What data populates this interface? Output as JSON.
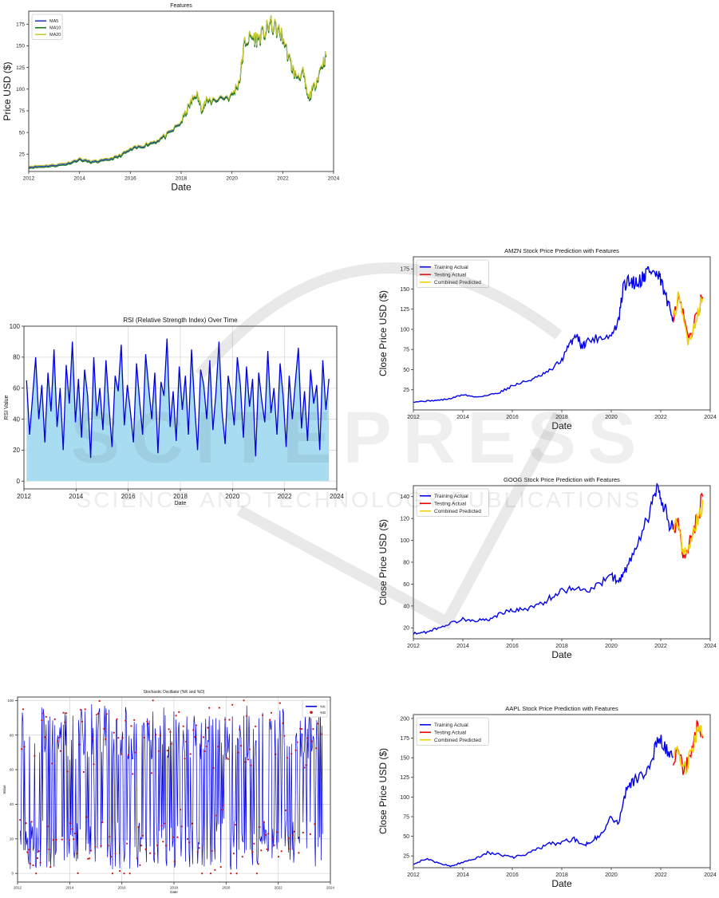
{
  "watermark": {
    "line1": "SCITEPRESS",
    "line2": "SCIENCE AND TECHNOLOGY PUBLICATIONS"
  },
  "chart_data": [
    {
      "id": "features",
      "type": "line",
      "title": "Features",
      "xlabel": "Date",
      "ylabel": "Price USD ($)",
      "xlim": [
        2012,
        2024
      ],
      "ylim": [
        5,
        190
      ],
      "xticks": [
        2012,
        2014,
        2016,
        2018,
        2020,
        2022,
        2024
      ],
      "yticks": [
        25,
        50,
        75,
        100,
        125,
        150,
        175
      ],
      "legend_position": "top-left",
      "x": [
        2012.0,
        2012.5,
        2013.0,
        2013.5,
        2014.0,
        2014.5,
        2015.0,
        2015.5,
        2016.0,
        2016.5,
        2017.0,
        2017.5,
        2018.0,
        2018.3,
        2018.6,
        2018.8,
        2019.0,
        2019.5,
        2020.0,
        2020.3,
        2020.5,
        2020.8,
        2021.0,
        2021.3,
        2021.5,
        2021.8,
        2022.0,
        2022.3,
        2022.5,
        2022.8,
        2023.0,
        2023.2,
        2023.5,
        2023.7
      ],
      "series": [
        {
          "name": "MA5",
          "color": "#1f3fbf",
          "values": [
            10,
            11,
            12,
            14,
            19,
            16,
            18,
            22,
            30,
            35,
            40,
            48,
            62,
            80,
            95,
            78,
            85,
            90,
            92,
            110,
            155,
            160,
            158,
            165,
            175,
            168,
            160,
            130,
            115,
            118,
            88,
            100,
            125,
            138
          ]
        },
        {
          "name": "MA10",
          "color": "#1e7a1e",
          "values": [
            10,
            11,
            12,
            14,
            19,
            16,
            18,
            22,
            30,
            35,
            40,
            48,
            62,
            80,
            95,
            78,
            85,
            90,
            92,
            110,
            155,
            160,
            158,
            165,
            175,
            168,
            160,
            130,
            115,
            118,
            88,
            100,
            125,
            138
          ]
        },
        {
          "name": "MA20",
          "color": "#c8c832",
          "values": [
            10,
            11,
            12,
            14,
            19,
            16,
            18,
            22,
            30,
            35,
            40,
            48,
            62,
            80,
            95,
            78,
            85,
            90,
            92,
            110,
            155,
            160,
            158,
            165,
            175,
            168,
            160,
            130,
            115,
            118,
            88,
            100,
            125,
            138
          ]
        }
      ]
    },
    {
      "id": "rsi",
      "type": "line",
      "title": "RSI (Relative Strength Index) Over Time",
      "xlabel": "Date",
      "ylabel": "RSI Value",
      "xlim": [
        2012,
        2024
      ],
      "ylim": [
        -5,
        100
      ],
      "xticks": [
        2012,
        2014,
        2016,
        2018,
        2020,
        2022,
        2024
      ],
      "yticks": [
        0,
        20,
        40,
        60,
        80,
        100
      ],
      "fill_color": "#a8dcf0",
      "line_color": "#0000dd",
      "x_start": 2012.1,
      "x_end": 2023.7,
      "values": [
        65,
        30,
        55,
        80,
        40,
        62,
        25,
        70,
        45,
        85,
        35,
        60,
        20,
        75,
        50,
        90,
        38,
        66,
        28,
        72,
        55,
        15,
        80,
        42,
        60,
        33,
        78,
        48,
        22,
        68,
        58,
        88,
        36,
        62,
        45,
        25,
        76,
        52,
        30,
        82,
        60,
        40,
        70,
        18,
        64,
        55,
        92,
        35,
        58,
        26,
        74,
        46,
        68,
        30,
        85,
        50,
        20,
        72,
        62,
        40,
        78,
        33,
        57,
        90,
        45,
        24,
        68,
        55,
        36,
        80,
        62,
        28,
        74,
        48,
        66,
        16,
        70,
        52,
        38,
        84,
        44,
        60,
        30,
        76,
        55,
        22,
        68,
        40,
        64,
        86,
        34,
        58,
        26,
        72,
        50,
        62,
        20,
        78,
        46,
        66
      ]
    },
    {
      "id": "stochastic",
      "type": "line",
      "title": "Stochastic Oscillator (%K and %D)",
      "xlabel": "Date",
      "ylabel": "Value",
      "xlim": [
        2012,
        2024
      ],
      "ylim": [
        -5,
        102
      ],
      "xticks": [
        2012,
        2014,
        2016,
        2018,
        2020,
        2022,
        2024
      ],
      "yticks": [
        0,
        20,
        40,
        60,
        80,
        100
      ],
      "legend_position": "top-right",
      "x_start": 2012.1,
      "x_end": 2023.7,
      "series": [
        {
          "name": "%K",
          "color": "#0000dd"
        },
        {
          "name": "%D",
          "color": "#cc1111"
        }
      ]
    },
    {
      "id": "amzn",
      "type": "line",
      "title": "AMZN Stock Price Prediction with Features",
      "xlabel": "Date",
      "ylabel": "Close Price USD ($)",
      "xlim": [
        2012,
        2024
      ],
      "ylim": [
        0,
        190
      ],
      "xticks": [
        2012,
        2014,
        2016,
        2018,
        2020,
        2022,
        2024
      ],
      "yticks": [
        25,
        50,
        75,
        100,
        125,
        150,
        175
      ],
      "legend_position": "top-left",
      "series": [
        {
          "name": "Training Actual",
          "color": "#0000ee",
          "x": [
            2012.0,
            2012.5,
            2013.0,
            2013.5,
            2014.0,
            2014.5,
            2015.0,
            2015.5,
            2016.0,
            2016.5,
            2017.0,
            2017.5,
            2018.0,
            2018.3,
            2018.6,
            2018.8,
            2019.0,
            2019.5,
            2020.0,
            2020.3,
            2020.5,
            2020.8,
            2021.0,
            2021.3,
            2021.5,
            2021.8,
            2022.0,
            2022.3,
            2022.5
          ],
          "values": [
            10,
            11,
            12,
            14,
            19,
            16,
            18,
            22,
            30,
            35,
            40,
            48,
            62,
            80,
            95,
            78,
            85,
            90,
            92,
            110,
            155,
            160,
            158,
            165,
            175,
            168,
            160,
            130,
            115
          ]
        },
        {
          "name": "Testing Actual",
          "color": "#ee0000",
          "x": [
            2022.5,
            2022.7,
            2022.9,
            2023.1,
            2023.3,
            2023.5,
            2023.7
          ],
          "values": [
            115,
            140,
            118,
            88,
            100,
            125,
            140
          ]
        },
        {
          "name": "Combined Predicted",
          "color": "#f0d000",
          "x": [
            2022.5,
            2022.7,
            2022.9,
            2023.1,
            2023.3,
            2023.5,
            2023.7
          ],
          "values": [
            112,
            138,
            115,
            86,
            98,
            122,
            138
          ]
        }
      ]
    },
    {
      "id": "goog",
      "type": "line",
      "title": "GOOG Stock Price Prediction with Features",
      "xlabel": "Date",
      "ylabel": "Close Price USD ($)",
      "xlim": [
        2012,
        2024
      ],
      "ylim": [
        10,
        150
      ],
      "xticks": [
        2012,
        2014,
        2016,
        2018,
        2020,
        2022,
        2024
      ],
      "yticks": [
        20,
        40,
        60,
        80,
        100,
        120,
        140
      ],
      "legend_position": "top-left",
      "series": [
        {
          "name": "Training Actual",
          "color": "#0000ee",
          "x": [
            2012.0,
            2012.5,
            2013.0,
            2013.5,
            2014.0,
            2014.5,
            2015.0,
            2015.5,
            2016.0,
            2016.5,
            2017.0,
            2017.5,
            2018.0,
            2018.5,
            2019.0,
            2019.5,
            2020.0,
            2020.3,
            2020.6,
            2021.0,
            2021.5,
            2021.8,
            2022.0,
            2022.3,
            2022.5
          ],
          "values": [
            15,
            16,
            20,
            24,
            28,
            27,
            27,
            33,
            36,
            37,
            40,
            47,
            54,
            57,
            54,
            59,
            68,
            62,
            74,
            90,
            122,
            145,
            140,
            118,
            110
          ]
        },
        {
          "name": "Testing Actual",
          "color": "#ee0000",
          "x": [
            2022.5,
            2022.7,
            2022.9,
            2023.1,
            2023.3,
            2023.5,
            2023.7
          ],
          "values": [
            110,
            120,
            86,
            92,
            108,
            122,
            140
          ]
        },
        {
          "name": "Combined Predicted",
          "color": "#f0d000",
          "x": [
            2022.5,
            2022.7,
            2022.9,
            2023.1,
            2023.3,
            2023.5,
            2023.7
          ],
          "values": [
            108,
            117,
            88,
            90,
            105,
            120,
            137
          ]
        }
      ]
    },
    {
      "id": "aapl",
      "type": "line",
      "title": "AAPL Stock Price Prediction with Features",
      "xlabel": "Date",
      "ylabel": "Close Price USD ($)",
      "xlim": [
        2012,
        2024
      ],
      "ylim": [
        10,
        205
      ],
      "xticks": [
        2012,
        2014,
        2016,
        2018,
        2020,
        2022,
        2024
      ],
      "yticks": [
        25,
        50,
        75,
        100,
        125,
        150,
        175,
        200
      ],
      "legend_position": "top-left",
      "series": [
        {
          "name": "Training Actual",
          "color": "#0000ee",
          "x": [
            2012.0,
            2012.5,
            2013.0,
            2013.5,
            2014.0,
            2014.5,
            2015.0,
            2015.5,
            2016.0,
            2016.5,
            2017.0,
            2017.5,
            2018.0,
            2018.5,
            2018.9,
            2019.2,
            2019.6,
            2020.0,
            2020.3,
            2020.6,
            2020.9,
            2021.2,
            2021.6,
            2021.9,
            2022.2,
            2022.5
          ],
          "values": [
            15,
            21,
            16,
            12,
            17,
            22,
            29,
            27,
            23,
            26,
            34,
            40,
            42,
            47,
            38,
            45,
            52,
            75,
            65,
            110,
            120,
            125,
            145,
            175,
            160,
            150
          ]
        },
        {
          "name": "Testing Actual",
          "color": "#ee0000",
          "x": [
            2022.5,
            2022.7,
            2022.9,
            2023.1,
            2023.3,
            2023.5,
            2023.7
          ],
          "values": [
            150,
            165,
            130,
            145,
            170,
            190,
            175
          ]
        },
        {
          "name": "Combined Predicted",
          "color": "#f0d000",
          "x": [
            2022.5,
            2022.7,
            2022.9,
            2023.1,
            2023.3,
            2023.5,
            2023.7
          ],
          "values": [
            148,
            162,
            132,
            142,
            168,
            192,
            178
          ]
        }
      ]
    }
  ]
}
